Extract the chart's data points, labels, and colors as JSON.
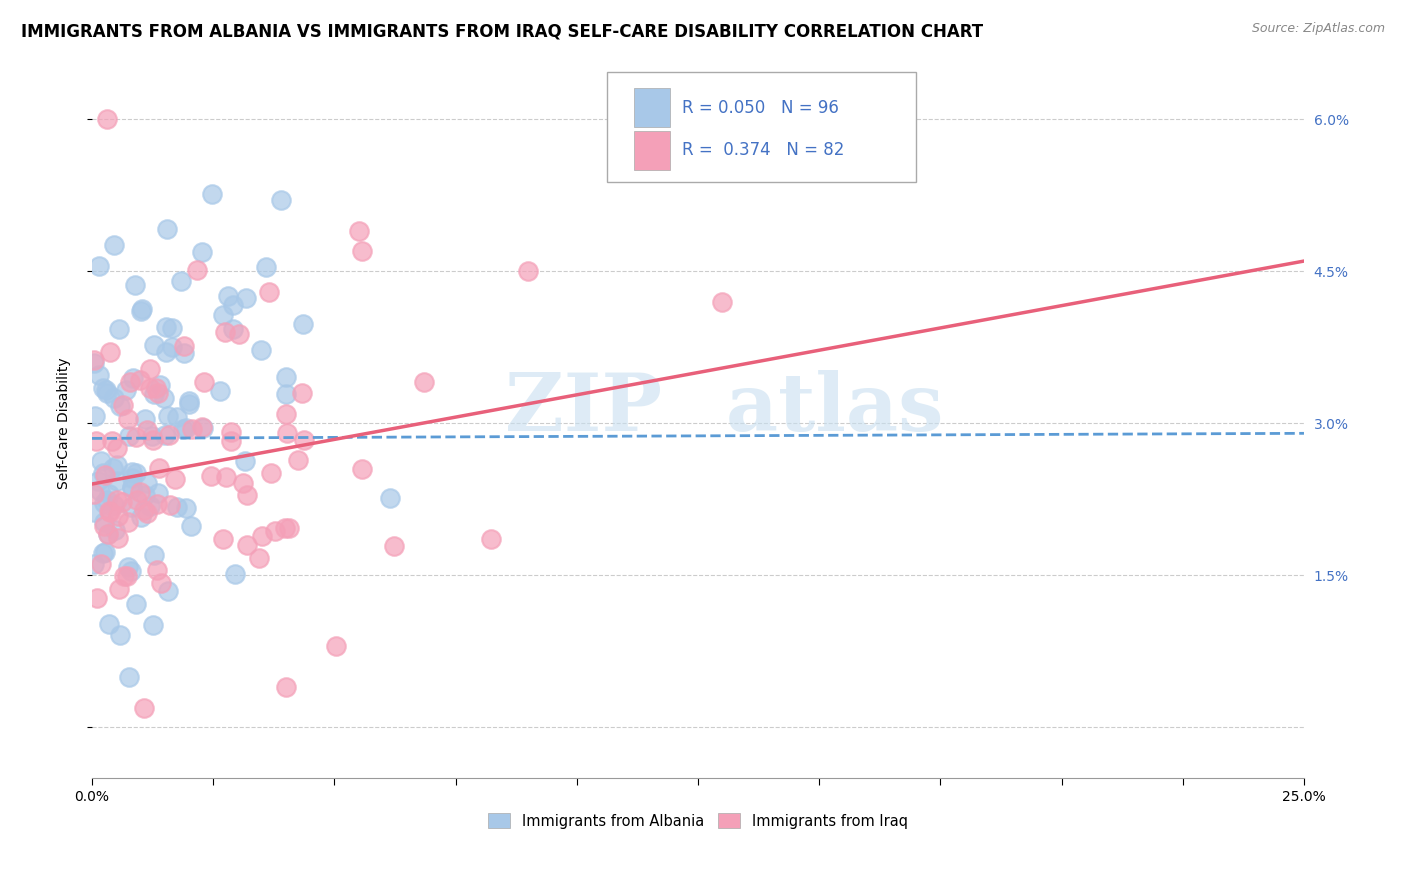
{
  "title": "IMMIGRANTS FROM ALBANIA VS IMMIGRANTS FROM IRAQ SELF-CARE DISABILITY CORRELATION CHART",
  "source": "Source: ZipAtlas.com",
  "ylabel": "Self-Care Disability",
  "x_min": 0.0,
  "x_max": 0.25,
  "y_min": -0.005,
  "y_max": 0.065,
  "albania_color": "#a8c8e8",
  "iraq_color": "#f4a0b8",
  "albania_line_color": "#5b9bd5",
  "iraq_line_color": "#e8607a",
  "legend_R_albania": "0.050",
  "legend_N_albania": "96",
  "legend_R_iraq": "0.374",
  "legend_N_iraq": "82",
  "legend_label_albania": "Immigrants from Albania",
  "legend_label_iraq": "Immigrants from Iraq",
  "watermark_zip": "ZIP",
  "watermark_atlas": "atlas",
  "background_color": "#ffffff",
  "grid_color": "#cccccc",
  "legend_text_color": "#4472c4",
  "right_tick_color": "#4472c4",
  "title_fontsize": 12,
  "axis_label_fontsize": 10,
  "tick_fontsize": 10,
  "albania_line_intercept": 0.0285,
  "albania_line_slope": 0.002,
  "iraq_line_intercept": 0.024,
  "iraq_line_slope": 0.088
}
